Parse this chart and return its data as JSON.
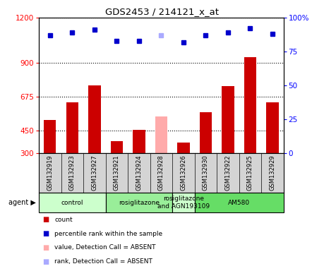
{
  "title": "GDS2453 / 214121_x_at",
  "samples": [
    "GSM132919",
    "GSM132923",
    "GSM132927",
    "GSM132921",
    "GSM132924",
    "GSM132928",
    "GSM132926",
    "GSM132930",
    "GSM132922",
    "GSM132925",
    "GSM132929"
  ],
  "counts": [
    520,
    635,
    750,
    380,
    455,
    545,
    370,
    570,
    745,
    935,
    635
  ],
  "absent": [
    false,
    false,
    false,
    false,
    false,
    true,
    false,
    false,
    false,
    false,
    false
  ],
  "ranks": [
    87,
    89,
    91,
    83,
    83,
    87,
    82,
    87,
    89,
    92,
    88
  ],
  "rank_absent": [
    false,
    false,
    false,
    false,
    false,
    true,
    false,
    false,
    false,
    false,
    false
  ],
  "ylim_left": [
    300,
    1200
  ],
  "ylim_right": [
    0,
    100
  ],
  "yticks_left": [
    300,
    450,
    675,
    900,
    1200
  ],
  "yticks_right": [
    0,
    25,
    50,
    75,
    100
  ],
  "agent_groups": [
    {
      "label": "control",
      "start": 0,
      "end": 3,
      "color": "#ccffcc"
    },
    {
      "label": "rosiglitazone",
      "start": 3,
      "end": 6,
      "color": "#99ee99"
    },
    {
      "label": "rosiglitazone\nand AGN193109",
      "start": 6,
      "end": 7,
      "color": "#ccffcc"
    },
    {
      "label": "AM580",
      "start": 7,
      "end": 11,
      "color": "#66dd66"
    }
  ],
  "bar_color_normal": "#cc0000",
  "bar_color_absent": "#ffaaaa",
  "dot_color_normal": "#0000cc",
  "dot_color_absent": "#aaaaff",
  "label_bg": "#d4d4d4",
  "plot_bg": "#ffffff"
}
